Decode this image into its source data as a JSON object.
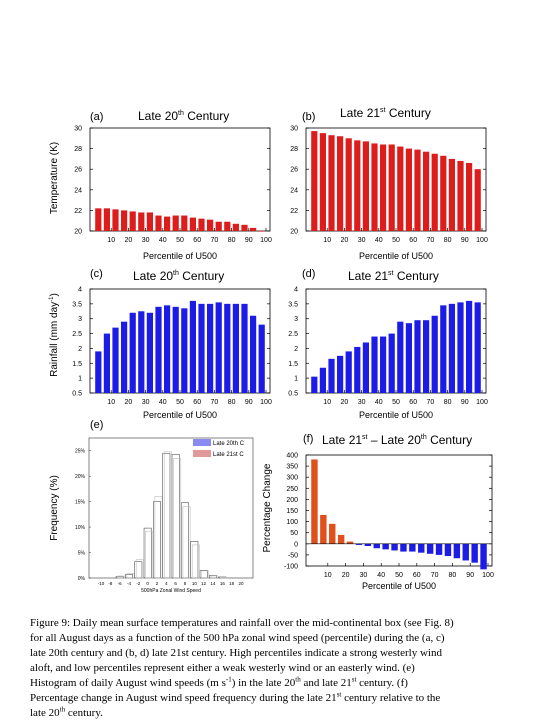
{
  "figure": {
    "panels": {
      "a": {
        "letter": "(a)",
        "title_main": "Late 20",
        "title_sup": "th",
        "title_tail": " Century"
      },
      "b": {
        "letter": "(b)",
        "title_main": "Late 21",
        "title_sup": "st",
        "title_tail": " Century"
      },
      "c": {
        "letter": "(c)",
        "title_main": "Late 20",
        "title_sup": "th",
        "title_tail": " Century"
      },
      "d": {
        "letter": "(d)",
        "title_main": "Late 21",
        "title_sup": "st",
        "title_tail": " Century"
      },
      "e": {
        "letter": "(e)"
      },
      "f": {
        "letter": "(f)",
        "title_a": "Late 21",
        "title_a_sup": "st",
        "title_b": " – Late 20",
        "title_b_sup": "th",
        "title_tail": " Century"
      }
    },
    "y_labels": {
      "temperature": "Temperature (K)",
      "rainfall_main": "Rainfall (mm day",
      "rainfall_sup": "-1",
      "rainfall_tail": ")",
      "frequency": "Frequency (%)",
      "percentage_change": "Percentage Change"
    },
    "x_label": "Percentile of U500",
    "colors": {
      "red": "#dd1c1c",
      "blue": "#1c1ce6",
      "orange": "#e0501c",
      "legend_blue": "#8a8af0",
      "legend_red": "#e09a9a"
    }
  },
  "caption": {
    "line1": "Figure 9: Daily mean surface temperatures and rainfall over the mid-continental box (see Fig. 8)",
    "line2": "for all August days as a function of the 500 hPa zonal wind speed (percentile) during the (a, c)",
    "line3": "late 20th century and (b, d) late 21st century. High percentiles indicate a strong westerly wind",
    "line4": "aloft, and low percentiles represent either a weak westerly wind or an easterly wind. (e)",
    "line5a": "Histogram of daily August wind speeds (m s",
    "line5sup1": "-1",
    "line5b": ") in the late 20",
    "line5sup2": "th",
    "line5c": " and late 21",
    "line5sup3": "st",
    "line5d": " century. (f)",
    "line6a": "Percentage change in August wind speed frequency during the late 21",
    "line6sup": "st",
    "line6b": " century relative to the",
    "line7a": "late 20",
    "line7sup": "th",
    "line7b": " century."
  },
  "chart_data": [
    {
      "panel": "a",
      "type": "bar",
      "color": "#dd1c1c",
      "x": [
        5,
        10,
        15,
        20,
        25,
        30,
        35,
        40,
        45,
        50,
        55,
        60,
        65,
        70,
        75,
        80,
        85,
        90,
        95,
        100
      ],
      "values": [
        22.2,
        22.2,
        22.1,
        22.0,
        21.9,
        21.8,
        21.8,
        21.5,
        21.4,
        21.5,
        21.5,
        21.3,
        21.2,
        21.1,
        20.9,
        20.9,
        20.7,
        20.6,
        20.3,
        20.0
      ],
      "xticks": [
        10,
        20,
        30,
        40,
        50,
        60,
        70,
        80,
        90,
        100
      ],
      "yticks": [
        20,
        22,
        24,
        26,
        28,
        30
      ],
      "ylim": [
        20,
        30
      ],
      "ylabel": "Temperature (K)",
      "xlabel": "Percentile of U500",
      "title": "Late 20th Century"
    },
    {
      "panel": "b",
      "type": "bar",
      "color": "#dd1c1c",
      "x": [
        5,
        10,
        15,
        20,
        25,
        30,
        35,
        40,
        45,
        50,
        55,
        60,
        65,
        70,
        75,
        80,
        85,
        90,
        95,
        100
      ],
      "values": [
        29.7,
        29.5,
        29.3,
        29.2,
        29.0,
        28.8,
        28.7,
        28.5,
        28.4,
        28.4,
        28.2,
        28.0,
        27.9,
        27.7,
        27.5,
        27.3,
        27.0,
        26.8,
        26.6,
        26.0
      ],
      "xticks": [
        10,
        20,
        30,
        40,
        50,
        60,
        70,
        80,
        90,
        100
      ],
      "yticks": [
        20,
        22,
        24,
        26,
        28,
        30
      ],
      "ylim": [
        20,
        30
      ],
      "xlabel": "Percentile of U500",
      "title": "Late 21st Century"
    },
    {
      "panel": "c",
      "type": "bar",
      "color": "#1c1ce6",
      "x": [
        5,
        10,
        15,
        20,
        25,
        30,
        35,
        40,
        45,
        50,
        55,
        60,
        65,
        70,
        75,
        80,
        85,
        90,
        95,
        100
      ],
      "values": [
        1.9,
        2.5,
        2.7,
        2.9,
        3.2,
        3.25,
        3.2,
        3.4,
        3.45,
        3.4,
        3.35,
        3.6,
        3.5,
        3.5,
        3.55,
        3.5,
        3.5,
        3.5,
        3.1,
        2.8
      ],
      "xticks": [
        10,
        20,
        30,
        40,
        50,
        60,
        70,
        80,
        90,
        100
      ],
      "yticks": [
        0.5,
        1,
        1.5,
        2,
        2.5,
        3,
        3.5,
        4
      ],
      "ylim": [
        0.5,
        4
      ],
      "ylabel": "Rainfall (mm day-1)",
      "xlabel": "Percentile of U500",
      "title": "Late 20th Century"
    },
    {
      "panel": "d",
      "type": "bar",
      "color": "#1c1ce6",
      "x": [
        5,
        10,
        15,
        20,
        25,
        30,
        35,
        40,
        45,
        50,
        55,
        60,
        65,
        70,
        75,
        80,
        85,
        90,
        95,
        100
      ],
      "values": [
        1.05,
        1.35,
        1.65,
        1.75,
        1.9,
        2.05,
        2.2,
        2.4,
        2.4,
        2.5,
        2.9,
        2.85,
        2.95,
        2.95,
        3.1,
        3.45,
        3.5,
        3.55,
        3.6,
        3.55
      ],
      "xticks": [
        10,
        20,
        30,
        40,
        50,
        60,
        70,
        80,
        90,
        100
      ],
      "yticks": [
        0.5,
        1,
        1.5,
        2,
        2.5,
        3,
        3.5,
        4
      ],
      "ylim": [
        0.5,
        4
      ],
      "xlabel": "Percentile of U500",
      "title": "Late 21st Century"
    },
    {
      "panel": "e",
      "type": "bar",
      "categories": [
        -10,
        -8,
        -6,
        -4,
        -2,
        0,
        2,
        4,
        6,
        8,
        10,
        12,
        14,
        16,
        18,
        20
      ],
      "series": [
        {
          "name": "Late 20th C",
          "values": [
            0,
            0,
            0.3,
            0.7,
            3.2,
            9.8,
            15.0,
            24.5,
            24.3,
            14.8,
            7.2,
            1.5,
            0.5,
            0.2,
            0,
            0
          ]
        },
        {
          "name": "Late 21st C",
          "values": [
            0,
            0,
            0.4,
            0.9,
            3.6,
            9.2,
            16.0,
            24.8,
            23.5,
            14.0,
            6.5,
            1.4,
            0.4,
            0.1,
            0,
            0
          ]
        }
      ],
      "xticks": [
        "-10",
        "-8",
        "-6",
        "-4",
        "-2",
        "0",
        "2",
        "4",
        "6",
        "8",
        "10",
        "12",
        "14",
        "16",
        "18",
        "20"
      ],
      "yticks": [
        "0%",
        "5%",
        "10%",
        "15%",
        "20%",
        "25%"
      ],
      "ylim": [
        0,
        27.5
      ],
      "ylabel": "Frequency (%)",
      "xlabel": "500hPa Zonal Wind Speed",
      "legend": "top-right"
    },
    {
      "panel": "f",
      "type": "bar",
      "x": [
        5,
        10,
        15,
        20,
        25,
        30,
        35,
        40,
        45,
        50,
        55,
        60,
        65,
        70,
        75,
        80,
        85,
        90,
        95,
        100
      ],
      "values": [
        380,
        130,
        90,
        40,
        10,
        -5,
        -10,
        -20,
        -25,
        -30,
        -35,
        -35,
        -40,
        -45,
        -50,
        -55,
        -65,
        -75,
        -85,
        -115
      ],
      "positive_color": "#e0501c",
      "negative_color": "#1c1ce6",
      "xticks": [
        10,
        20,
        30,
        40,
        50,
        60,
        70,
        80,
        90,
        100
      ],
      "yticks": [
        -100,
        -50,
        0,
        50,
        100,
        150,
        200,
        250,
        300,
        350,
        400
      ],
      "ylim": [
        -100,
        400
      ],
      "ylabel": "Percentage Change",
      "xlabel": "Percentile of U500",
      "title": "Late 21st – Late 20th Century"
    }
  ]
}
